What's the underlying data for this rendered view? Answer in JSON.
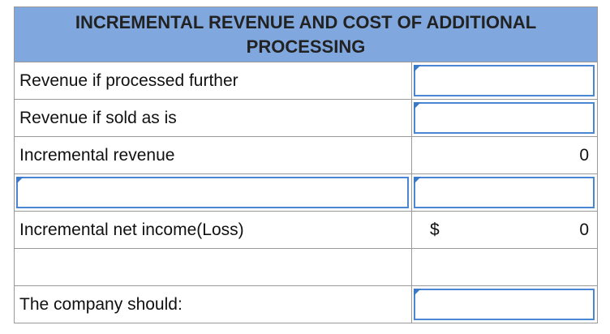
{
  "header": {
    "title": "INCREMENTAL REVENUE AND COST OF ADDITIONAL PROCESSING"
  },
  "table": {
    "rows": [
      {
        "label": "Revenue if processed further"
      },
      {
        "label": "Revenue if sold as is"
      },
      {
        "label": "Incremental revenue",
        "value": 0
      },
      {},
      {
        "label": "Incremental net income(Loss)",
        "currency": "$",
        "value": 0
      },
      {},
      {
        "label": "The company should:"
      }
    ]
  }
}
